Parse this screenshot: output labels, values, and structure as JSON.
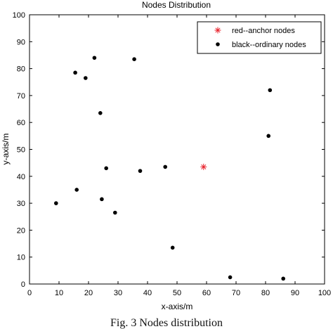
{
  "caption": "Fig. 3 Nodes distribution",
  "chart_data": {
    "type": "scatter",
    "title": "Nodes Distribution",
    "xlabel": "x-axis/m",
    "ylabel": "y-axis/m",
    "xlim": [
      0,
      100
    ],
    "ylim": [
      0,
      100
    ],
    "xticks": [
      "0",
      "10",
      "20",
      "30",
      "40",
      "50",
      "60",
      "70",
      "80",
      "90",
      "100"
    ],
    "yticks": [
      "0",
      "10",
      "20",
      "30",
      "40",
      "50",
      "60",
      "70",
      "80",
      "90",
      "100"
    ],
    "grid": false,
    "legend_position": "top-right",
    "series": [
      {
        "name": "red--anchor nodes",
        "marker": "star",
        "color": "#e8202a",
        "points": [
          [
            59,
            43.5
          ]
        ]
      },
      {
        "name": "black--ordinary nodes",
        "marker": "filled-circle",
        "color": "#000000",
        "points": [
          [
            22,
            84
          ],
          [
            35.5,
            83.5
          ],
          [
            15.5,
            78.5
          ],
          [
            19,
            76.5
          ],
          [
            81.5,
            72
          ],
          [
            24,
            63.5
          ],
          [
            81,
            55
          ],
          [
            26,
            43
          ],
          [
            37.5,
            42
          ],
          [
            46,
            43.5
          ],
          [
            16,
            35
          ],
          [
            24.5,
            31.5
          ],
          [
            9,
            30
          ],
          [
            29,
            26.5
          ],
          [
            48.5,
            13.5
          ],
          [
            68,
            2.5
          ],
          [
            86,
            2
          ]
        ]
      }
    ]
  }
}
